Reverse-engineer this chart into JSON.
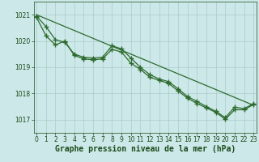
{
  "series": [
    {
      "name": "straight_line",
      "x": [
        0,
        23
      ],
      "y": [
        1021.0,
        1017.55
      ],
      "marker": "None",
      "linewidth": 0.9
    },
    {
      "name": "line_with_markers_1",
      "x": [
        0,
        1,
        2,
        3,
        4,
        5,
        6,
        7,
        8,
        9,
        10,
        11,
        12,
        13,
        14,
        15,
        16,
        17,
        18,
        19,
        20,
        21,
        22,
        23
      ],
      "y": [
        1020.95,
        1020.55,
        1020.05,
        1019.95,
        1019.5,
        1019.38,
        1019.35,
        1019.38,
        1019.82,
        1019.7,
        1019.35,
        1019.0,
        1018.72,
        1018.55,
        1018.45,
        1018.18,
        1017.88,
        1017.7,
        1017.5,
        1017.32,
        1017.08,
        1017.48,
        1017.42,
        1017.62
      ],
      "marker": "+",
      "linewidth": 0.9
    },
    {
      "name": "line_with_markers_2",
      "x": [
        0,
        1,
        2,
        3,
        4,
        5,
        6,
        7,
        8,
        9,
        10,
        11,
        12,
        13,
        14,
        15,
        16,
        17,
        18,
        19,
        20,
        21,
        22,
        23
      ],
      "y": [
        1020.9,
        1020.2,
        1019.85,
        1020.0,
        1019.45,
        1019.32,
        1019.28,
        1019.32,
        1019.68,
        1019.58,
        1019.15,
        1018.92,
        1018.62,
        1018.5,
        1018.38,
        1018.1,
        1017.82,
        1017.62,
        1017.45,
        1017.28,
        1017.02,
        1017.38,
        1017.38,
        1017.58
      ],
      "marker": "+",
      "linewidth": 0.9
    }
  ],
  "line_color": "#2d6a2d",
  "markersize": 4,
  "markeredgewidth": 1.0,
  "background_color": "#cce8e8",
  "grid_color": "#aacccc",
  "xlabel": "Graphe pression niveau de la mer (hPa)",
  "xlabel_fontsize": 7.0,
  "xlabel_color": "#1a4a1a",
  "tick_color": "#1a4a1a",
  "tick_fontsize": 5.5,
  "ylim": [
    1016.5,
    1021.5
  ],
  "xlim": [
    -0.3,
    23.3
  ],
  "yticks": [
    1017,
    1018,
    1019,
    1020,
    1021
  ],
  "xticks": [
    0,
    1,
    2,
    3,
    4,
    5,
    6,
    7,
    8,
    9,
    10,
    11,
    12,
    13,
    14,
    15,
    16,
    17,
    18,
    19,
    20,
    21,
    22,
    23
  ]
}
